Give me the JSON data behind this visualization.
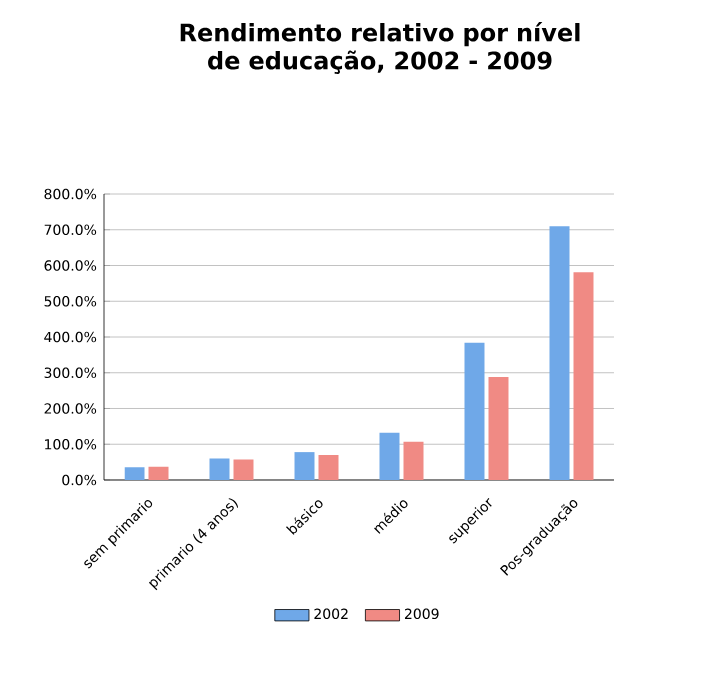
{
  "chart_data": {
    "type": "bar",
    "title": "Rendimento relativo por nível de educação, 2002 - 2009",
    "categories": [
      "sem primario",
      "primario (4 anos)",
      "básico",
      "médio",
      "superior",
      "Pos-graduação"
    ],
    "series": [
      {
        "name": "2002",
        "color": "#6fa8e8",
        "values": [
          36,
          60,
          78,
          132,
          384,
          710
        ]
      },
      {
        "name": "2009",
        "color": "#f08a84",
        "values": [
          37,
          57,
          70,
          107,
          288,
          581
        ]
      }
    ],
    "ylim": [
      0,
      800
    ],
    "yticks": [
      {
        "value": 0,
        "label": "0.0%"
      },
      {
        "value": 100,
        "label": "100.0%"
      },
      {
        "value": 200,
        "label": "200.0%"
      },
      {
        "value": 300,
        "label": "300.0%"
      },
      {
        "value": 400,
        "label": "400.0%"
      },
      {
        "value": 500,
        "label": "500.0%"
      },
      {
        "value": 600,
        "label": "600.0%"
      },
      {
        "value": 700,
        "label": "700.0%"
      },
      {
        "value": 800,
        "label": "800.0%"
      }
    ],
    "grid": "y",
    "legend": "bottom"
  }
}
